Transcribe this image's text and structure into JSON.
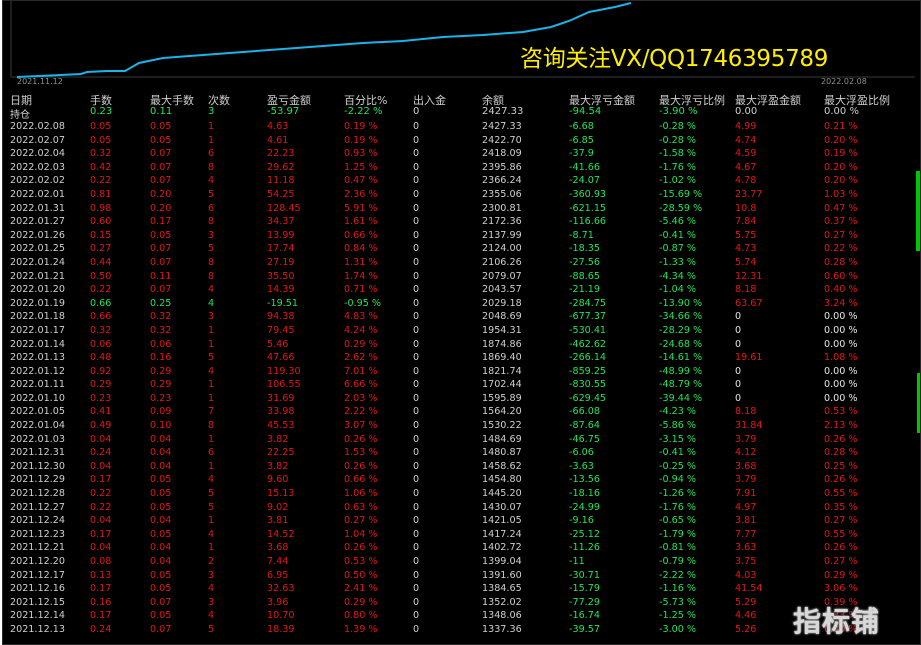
{
  "chart": {
    "tick_left": "2021.11.12",
    "tick_right": "2022.02.08",
    "line_color": "#1ab3ea"
  },
  "promo_text": "咨询关注VX/QQ1746395789",
  "watermark_text": "指标铺",
  "headers": [
    "日期",
    "手数",
    "最大手数",
    "次数",
    "盈亏金额",
    "百分比%",
    "出入金",
    "余额",
    "最大浮亏金额",
    "最大浮亏比例",
    "最大浮盈金额",
    "最大浮盈比例"
  ],
  "holding": {
    "label": "持仓",
    "cells": [
      "0.23",
      "0.11",
      "3",
      "-53.97",
      "-2.22 %",
      "0",
      "2427.33",
      "-94.54",
      "-3.90 %",
      "0.00",
      "0.00 %"
    ]
  },
  "colors": {
    "loss": "#e01818",
    "profit": "#22e45a",
    "text": "#cfcfcf"
  },
  "rows": [
    [
      "2022.02.08",
      "0.05",
      "0.05",
      "1",
      "4.63",
      "0.19 %",
      "0",
      "2427.33",
      "-6.68",
      "-0.28 %",
      "4.99",
      "0.21 %"
    ],
    [
      "2022.02.07",
      "0.05",
      "0.05",
      "1",
      "4.61",
      "0.19 %",
      "0",
      "2422.70",
      "-6.85",
      "-0.28 %",
      "4.74",
      "0.20 %"
    ],
    [
      "2022.02.04",
      "0.32",
      "0.07",
      "6",
      "22.23",
      "0.93 %",
      "0",
      "2418.09",
      "-37.9",
      "-1.58 %",
      "4.59",
      "0.19 %"
    ],
    [
      "2022.02.03",
      "0.42",
      "0.07",
      "8",
      "29.62",
      "1.25 %",
      "0",
      "2395.86",
      "-41.66",
      "-1.76 %",
      "4.67",
      "0.20 %"
    ],
    [
      "2022.02.02",
      "0.22",
      "0.07",
      "4",
      "11.18",
      "0.47 %",
      "0",
      "2366.24",
      "-24.07",
      "-1.02 %",
      "4.78",
      "0.20 %"
    ],
    [
      "2022.02.01",
      "0.81",
      "0.20",
      "5",
      "54.25",
      "2.36 %",
      "0",
      "2355.06",
      "-360.93",
      "-15.69 %",
      "23.77",
      "1.03 %"
    ],
    [
      "2022.01.31",
      "0.98",
      "0.20",
      "6",
      "128.45",
      "5.91 %",
      "0",
      "2300.81",
      "-621.15",
      "-28.59 %",
      "10.8",
      "0.47 %"
    ],
    [
      "2022.01.27",
      "0.60",
      "0.17",
      "8",
      "34.37",
      "1.61 %",
      "0",
      "2172.36",
      "-116.66",
      "-5.46 %",
      "7.84",
      "0.37 %"
    ],
    [
      "2022.01.26",
      "0.15",
      "0.05",
      "3",
      "13.99",
      "0.66 %",
      "0",
      "2137.99",
      "-8.71",
      "-0.41 %",
      "5.75",
      "0.27 %"
    ],
    [
      "2022.01.25",
      "0.27",
      "0.07",
      "5",
      "17.74",
      "0.84 %",
      "0",
      "2124.00",
      "-18.35",
      "-0.87 %",
      "4.73",
      "0.22 %"
    ],
    [
      "2022.01.24",
      "0.44",
      "0.07",
      "8",
      "27.19",
      "1.31 %",
      "0",
      "2106.26",
      "-27.56",
      "-1.33 %",
      "5.74",
      "0.28 %"
    ],
    [
      "2022.01.21",
      "0.50",
      "0.11",
      "8",
      "35.50",
      "1.74 %",
      "0",
      "2079.07",
      "-88.65",
      "-4.34 %",
      "12.31",
      "0.60 %"
    ],
    [
      "2022.01.20",
      "0.22",
      "0.07",
      "4",
      "14.39",
      "0.71 %",
      "0",
      "2043.57",
      "-21.19",
      "-1.04 %",
      "8.18",
      "0.40 %"
    ],
    [
      "2022.01.19",
      "0.66",
      "0.25",
      "4",
      "-19.51",
      "-0.95 %",
      "0",
      "2029.18",
      "-284.75",
      "-13.90 %",
      "63.67",
      "3.24 %"
    ],
    [
      "2022.01.18",
      "0.66",
      "0.32",
      "3",
      "94.38",
      "4.83 %",
      "0",
      "2048.69",
      "-677.37",
      "-34.66 %",
      "0",
      "0.00 %"
    ],
    [
      "2022.01.17",
      "0.32",
      "0.32",
      "1",
      "79.45",
      "4.24 %",
      "0",
      "1954.31",
      "-530.41",
      "-28.29 %",
      "0",
      "0.00 %"
    ],
    [
      "2022.01.14",
      "0.06",
      "0.06",
      "1",
      "5.46",
      "0.29 %",
      "0",
      "1874.86",
      "-462.62",
      "-24.68 %",
      "0",
      "0.00 %"
    ],
    [
      "2022.01.13",
      "0.48",
      "0.16",
      "5",
      "47.66",
      "2.62 %",
      "0",
      "1869.40",
      "-266.14",
      "-14.61 %",
      "19.61",
      "1.08 %"
    ],
    [
      "2022.01.12",
      "0.92",
      "0.29",
      "4",
      "119.30",
      "7.01 %",
      "0",
      "1821.74",
      "-859.25",
      "-48.99 %",
      "0",
      "0.00 %"
    ],
    [
      "2022.01.11",
      "0.29",
      "0.29",
      "1",
      "106.55",
      "6.66 %",
      "0",
      "1702.44",
      "-830.55",
      "-48.79 %",
      "0",
      "0.00 %"
    ],
    [
      "2022.01.10",
      "0.23",
      "0.23",
      "1",
      "31.69",
      "2.03 %",
      "0",
      "1595.89",
      "-629.45",
      "-39.44 %",
      "0",
      "0.00 %"
    ],
    [
      "2022.01.05",
      "0.41",
      "0.09",
      "7",
      "33.98",
      "2.22 %",
      "0",
      "1564.20",
      "-66.08",
      "-4.23 %",
      "8.18",
      "0.53 %"
    ],
    [
      "2022.01.04",
      "0.49",
      "0.10",
      "8",
      "45.53",
      "3.07 %",
      "0",
      "1530.22",
      "-87.64",
      "-5.86 %",
      "31.84",
      "2.13 %"
    ],
    [
      "2022.01.03",
      "0.04",
      "0.04",
      "1",
      "3.82",
      "0.26 %",
      "0",
      "1484.69",
      "-46.75",
      "-3.15 %",
      "3.79",
      "0.26 %"
    ],
    [
      "2021.12.31",
      "0.24",
      "0.04",
      "6",
      "22.25",
      "1.53 %",
      "0",
      "1480.87",
      "-6.06",
      "-0.41 %",
      "4.12",
      "0.28 %"
    ],
    [
      "2021.12.30",
      "0.04",
      "0.04",
      "1",
      "3.82",
      "0.26 %",
      "0",
      "1458.62",
      "-3.63",
      "-0.25 %",
      "3.68",
      "0.25 %"
    ],
    [
      "2021.12.29",
      "0.17",
      "0.05",
      "4",
      "9.60",
      "0.66 %",
      "0",
      "1454.80",
      "-13.56",
      "-0.94 %",
      "3.79",
      "0.26 %"
    ],
    [
      "2021.12.28",
      "0.22",
      "0.05",
      "5",
      "15.13",
      "1.06 %",
      "0",
      "1445.20",
      "-18.16",
      "-1.26 %",
      "7.91",
      "0.55 %"
    ],
    [
      "2021.12.27",
      "0.22",
      "0.05",
      "5",
      "9.02",
      "0.63 %",
      "0",
      "1430.07",
      "-24.99",
      "-1.76 %",
      "4.97",
      "0.35 %"
    ],
    [
      "2021.12.24",
      "0.04",
      "0.04",
      "1",
      "3.81",
      "0.27 %",
      "0",
      "1421.05",
      "-9.16",
      "-0.65 %",
      "3.81",
      "0.27 %"
    ],
    [
      "2021.12.23",
      "0.17",
      "0.05",
      "4",
      "14.52",
      "1.04 %",
      "0",
      "1417.24",
      "-25.12",
      "-1.79 %",
      "7.77",
      "0.55 %"
    ],
    [
      "2021.12.21",
      "0.04",
      "0.04",
      "1",
      "3.68",
      "0.26 %",
      "0",
      "1402.72",
      "-11.26",
      "-0.81 %",
      "3.63",
      "0.26 %"
    ],
    [
      "2021.12.20",
      "0.08",
      "0.04",
      "2",
      "7.44",
      "0.53 %",
      "0",
      "1399.04",
      "-11",
      "-0.79 %",
      "3.75",
      "0.27 %"
    ],
    [
      "2021.12.17",
      "0.13",
      "0.05",
      "3",
      "6.95",
      "0.50 %",
      "0",
      "1391.60",
      "-30.71",
      "-2.22 %",
      "4.03",
      "0.29 %"
    ],
    [
      "2021.12.16",
      "0.17",
      "0.05",
      "4",
      "32.63",
      "2.41 %",
      "0",
      "1384.65",
      "-15.79",
      "-1.16 %",
      "41.54",
      "3.06 %"
    ],
    [
      "2021.12.15",
      "0.16",
      "0.07",
      "3",
      "3.96",
      "0.29 %",
      "0",
      "1352.02",
      "-77.29",
      "-5.73 %",
      "5.29",
      "0.39 %"
    ],
    [
      "2021.12.14",
      "0.17",
      "0.05",
      "4",
      "10.70",
      "0.80 %",
      "0",
      "1348.06",
      "-16.74",
      "-1.25 %",
      "4.46",
      "0.33 %"
    ],
    [
      "2021.12.13",
      "0.24",
      "0.07",
      "5",
      "18.39",
      "1.39 %",
      "0",
      "1337.36",
      "-39.57",
      "-3.00 %",
      "5.26",
      "0.40 %"
    ]
  ]
}
